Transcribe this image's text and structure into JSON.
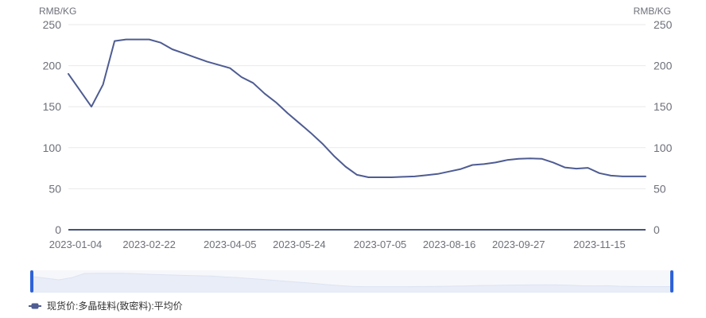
{
  "axes": {
    "y_axis_name_left": "RMB/KG",
    "y_axis_name_right": "RMB/KG"
  },
  "legend": {
    "items": [
      {
        "label": "现货价:多晶硅料(致密料):平均价",
        "color": "#4E5C92"
      }
    ]
  },
  "colors": {
    "line": "#4E5C92",
    "axis_line": "#475379",
    "grid": "#E9E9E9",
    "tick_text": "#6E7079",
    "zoom_handle": "#2E62D9",
    "zoom_bg": "#F6F7FB",
    "zoom_fill": "#E9EDF7",
    "zoom_fill_edge": "#DCE3F2",
    "legend_text": "#333333"
  },
  "chart_data": {
    "type": "line",
    "title": "",
    "ylabel": "RMB/KG",
    "ylabel_right": "RMB/KG",
    "ylim": [
      0,
      250
    ],
    "y_ticks": [
      0,
      50,
      100,
      150,
      200,
      250
    ],
    "grid": true,
    "legend_position": "bottom",
    "dual_y_axis": true,
    "navigator": true,
    "x_tick_labels": [
      "2023-01-04",
      "2023-02-22",
      "2023-04-05",
      "2023-05-24",
      "2023-07-05",
      "2023-08-16",
      "2023-09-27",
      "2023-11-15"
    ],
    "x_tick_indices": [
      0,
      7,
      14,
      20,
      27,
      33,
      39,
      46
    ],
    "series": [
      {
        "name": "现货价:多晶硅料(致密料):平均价",
        "color": "#4E5C92",
        "values": [
          190,
          170,
          150,
          177,
          230,
          232,
          232,
          232,
          228,
          220,
          215,
          210,
          205,
          201,
          197,
          186,
          179,
          166,
          155,
          142,
          130,
          118,
          105,
          90,
          77,
          67,
          64,
          64,
          64,
          64.5,
          65,
          66.5,
          68,
          71,
          74,
          79,
          80,
          82,
          85,
          86.5,
          87,
          86.5,
          82,
          76,
          74.5,
          75.5,
          69,
          66,
          65,
          65,
          65
        ]
      }
    ]
  }
}
